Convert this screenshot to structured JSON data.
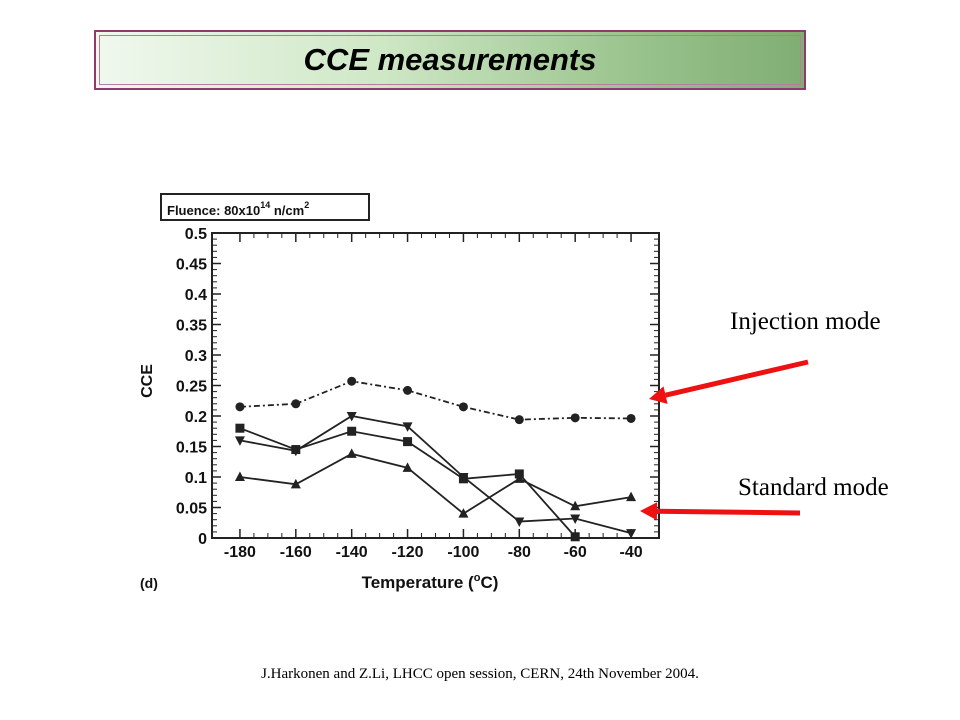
{
  "title": "CCE measurements",
  "annotations": {
    "injection_label": "Injection mode",
    "standard_label": "Standard mode",
    "arrow_color": "#ee1111"
  },
  "footer": "J.Harkonen and Z.Li, LHCC open session, CERN, 24th November 2004.",
  "chart_data": {
    "type": "line",
    "panel_label": "(d)",
    "fluence_label": {
      "prefix": "Fluence: 80x10",
      "exponent": "14",
      "suffix": " n/cm",
      "power": "2"
    },
    "xlabel": {
      "main": "Temperature (",
      "sup": "o",
      "end": "C)"
    },
    "ylabel": "CCE",
    "x": [
      -180,
      -160,
      -140,
      -120,
      -100,
      -80,
      -60,
      -40
    ],
    "xlim": [
      -190,
      -30
    ],
    "ylim": [
      0,
      0.5
    ],
    "yticks": [
      0,
      0.05,
      0.1,
      0.15,
      0.2,
      0.25,
      0.3,
      0.35,
      0.4,
      0.45,
      0.5
    ],
    "ytick_labels": [
      "0",
      "0.05",
      "0.1",
      "0.15",
      "0.2",
      "0.25",
      "0.3",
      "0.35",
      "0.4",
      "0.45",
      "0.5"
    ],
    "xtick_labels": [
      "-180",
      "-160",
      "-140",
      "-120",
      "-100",
      "-80",
      "-60",
      "-40"
    ],
    "series": [
      {
        "marker": "circle",
        "dash": "dashdot",
        "values": [
          0.215,
          0.22,
          0.257,
          0.242,
          0.215,
          0.194,
          0.197,
          0.196
        ]
      },
      {
        "marker": "triangle-down",
        "dash": "solid",
        "values": [
          0.16,
          0.143,
          0.2,
          0.183,
          0.1,
          0.027,
          0.032,
          0.008
        ]
      },
      {
        "marker": "square",
        "dash": "solid",
        "values": [
          0.18,
          0.145,
          0.175,
          0.158,
          0.097,
          0.105,
          0.002,
          null
        ]
      },
      {
        "marker": "triangle-up",
        "dash": "solid",
        "values": [
          0.1,
          0.088,
          0.138,
          0.115,
          0.04,
          0.097,
          0.052,
          0.067
        ]
      }
    ]
  }
}
